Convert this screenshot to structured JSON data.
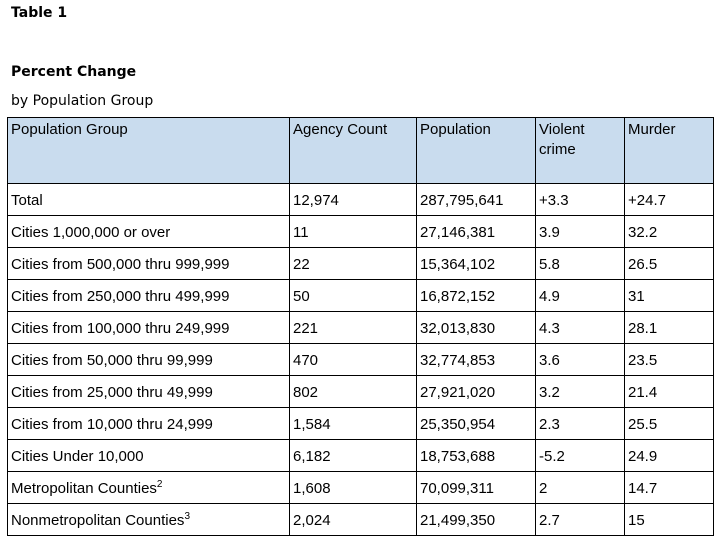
{
  "doc": {
    "title": "Table 1",
    "section_title": "Percent Change",
    "subtitle": "by Population Group"
  },
  "table": {
    "headers": [
      "Population Group",
      "Agency Count",
      "Population",
      "Violent crime",
      "Murder"
    ],
    "rows": [
      {
        "group": "Total",
        "sup": "",
        "agency_count": "12,974",
        "population": "287,795,641",
        "violent_crime": "+3.3",
        "murder": "+24.7"
      },
      {
        "group": "Cities 1,000,000 or over",
        "sup": "",
        "agency_count": "11",
        "population": "27,146,381",
        "violent_crime": "3.9",
        "murder": "32.2"
      },
      {
        "group": "Cities from 500,000 thru 999,999",
        "sup": "",
        "agency_count": "22",
        "population": "15,364,102",
        "violent_crime": "5.8",
        "murder": "26.5"
      },
      {
        "group": "Cities from 250,000 thru 499,999",
        "sup": "",
        "agency_count": "50",
        "population": "16,872,152",
        "violent_crime": "4.9",
        "murder": "31"
      },
      {
        "group": "Cities from 100,000 thru 249,999",
        "sup": "",
        "agency_count": "221",
        "population": "32,013,830",
        "violent_crime": "4.3",
        "murder": "28.1"
      },
      {
        "group": "Cities from 50,000 thru 99,999",
        "sup": "",
        "agency_count": "470",
        "population": "32,774,853",
        "violent_crime": "3.6",
        "murder": "23.5"
      },
      {
        "group": "Cities from 25,000 thru 49,999",
        "sup": "",
        "agency_count": "802",
        "population": "27,921,020",
        "violent_crime": "3.2",
        "murder": "21.4"
      },
      {
        "group": "Cities from 10,000 thru 24,999",
        "sup": "",
        "agency_count": "1,584",
        "population": "25,350,954",
        "violent_crime": "2.3",
        "murder": "25.5"
      },
      {
        "group": "Cities Under 10,000",
        "sup": "",
        "agency_count": "6,182",
        "population": "18,753,688",
        "violent_crime": "-5.2",
        "murder": "24.9"
      },
      {
        "group": "Metropolitan Counties",
        "sup": "2",
        "agency_count": "1,608",
        "population": "70,099,311",
        "violent_crime": "2",
        "murder": "14.7"
      },
      {
        "group": "Nonmetropolitan Counties",
        "sup": "3",
        "agency_count": "2,024",
        "population": "21,499,350",
        "violent_crime": "2.7",
        "murder": "15"
      }
    ]
  },
  "colors": {
    "header_background": "#c9dcee",
    "border": "#000000",
    "text": "#000000"
  }
}
